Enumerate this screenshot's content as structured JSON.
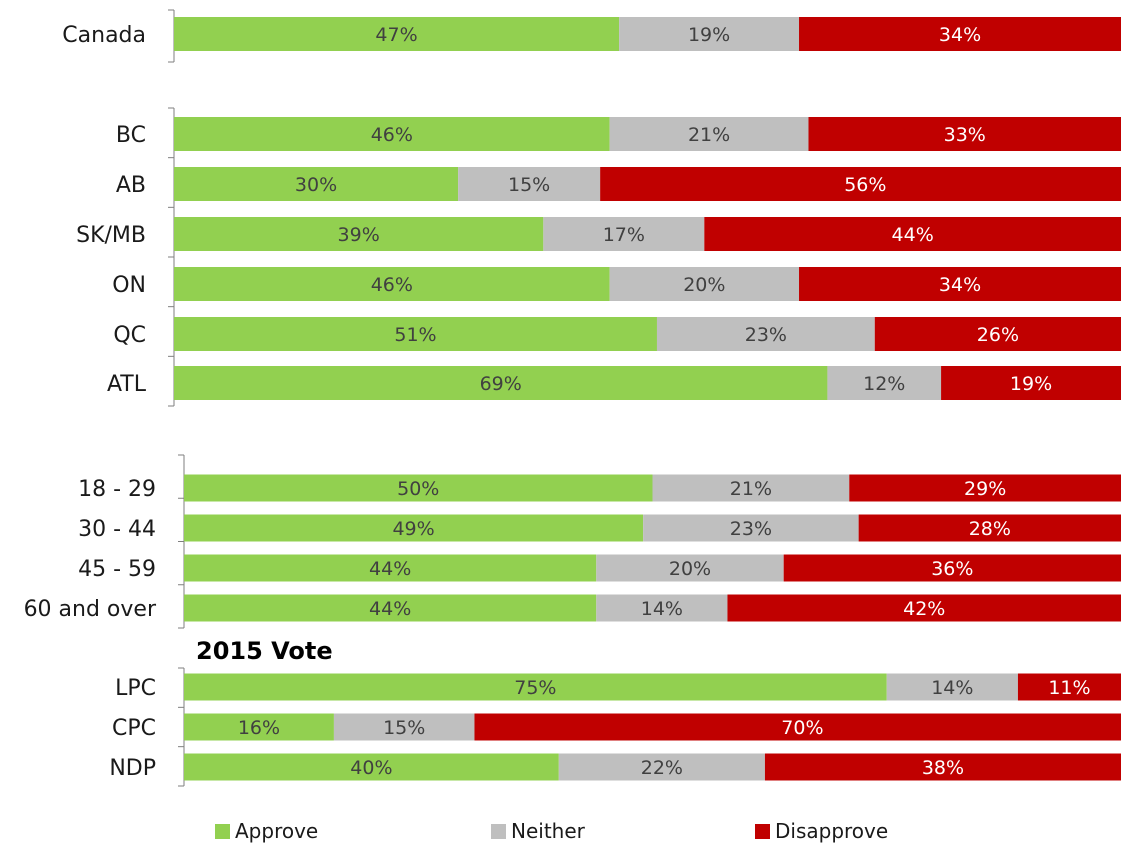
{
  "colors": {
    "approve": "#92d050",
    "neither": "#bfbfbf",
    "disapprove": "#c00000",
    "label_on_light": "#404040",
    "label_on_dark": "#ffffff"
  },
  "chart_data": [
    {
      "type": "bar",
      "orientation": "horizontal",
      "stacked": true,
      "normalized": true,
      "categories": [
        "Canada"
      ],
      "series": [
        {
          "name": "Approve",
          "values": [
            47
          ]
        },
        {
          "name": "Neither",
          "values": [
            19
          ]
        },
        {
          "name": "Disapprove",
          "values": [
            34
          ]
        }
      ],
      "xlim": [
        0,
        100
      ],
      "grid": false
    },
    {
      "type": "bar",
      "orientation": "horizontal",
      "stacked": true,
      "normalized": true,
      "categories": [
        "BC",
        "AB",
        "SK/MB",
        "ON",
        "QC",
        "ATL"
      ],
      "series": [
        {
          "name": "Approve",
          "values": [
            46,
            30,
            39,
            46,
            51,
            69
          ]
        },
        {
          "name": "Neither",
          "values": [
            21,
            15,
            17,
            20,
            23,
            12
          ]
        },
        {
          "name": "Disapprove",
          "values": [
            33,
            56,
            44,
            34,
            26,
            19
          ]
        }
      ],
      "xlim": [
        0,
        100
      ],
      "grid": false
    },
    {
      "type": "bar",
      "orientation": "horizontal",
      "stacked": true,
      "normalized": true,
      "categories": [
        "18 - 29",
        "30 - 44",
        "45 - 59",
        "60 and over"
      ],
      "series": [
        {
          "name": "Approve",
          "values": [
            50,
            49,
            44,
            44
          ]
        },
        {
          "name": "Neither",
          "values": [
            21,
            23,
            20,
            14
          ]
        },
        {
          "name": "Disapprove",
          "values": [
            29,
            28,
            36,
            42
          ]
        }
      ],
      "xlim": [
        0,
        100
      ],
      "grid": false
    },
    {
      "type": "bar",
      "orientation": "horizontal",
      "stacked": true,
      "normalized": true,
      "title": "2015 Vote",
      "categories": [
        "LPC",
        "CPC",
        "NDP"
      ],
      "series": [
        {
          "name": "Approve",
          "values": [
            75,
            16,
            40
          ]
        },
        {
          "name": "Neither",
          "values": [
            14,
            15,
            22
          ]
        },
        {
          "name": "Disapprove",
          "values": [
            11,
            70,
            38
          ]
        }
      ],
      "xlim": [
        0,
        100
      ],
      "grid": false
    }
  ],
  "section_header": "2015 Vote",
  "legend": {
    "placement": "bottom",
    "items": [
      {
        "name": "Approve",
        "color": "#92d050"
      },
      {
        "name": "Neither",
        "color": "#bfbfbf"
      },
      {
        "name": "Disapprove",
        "color": "#c00000"
      }
    ]
  }
}
